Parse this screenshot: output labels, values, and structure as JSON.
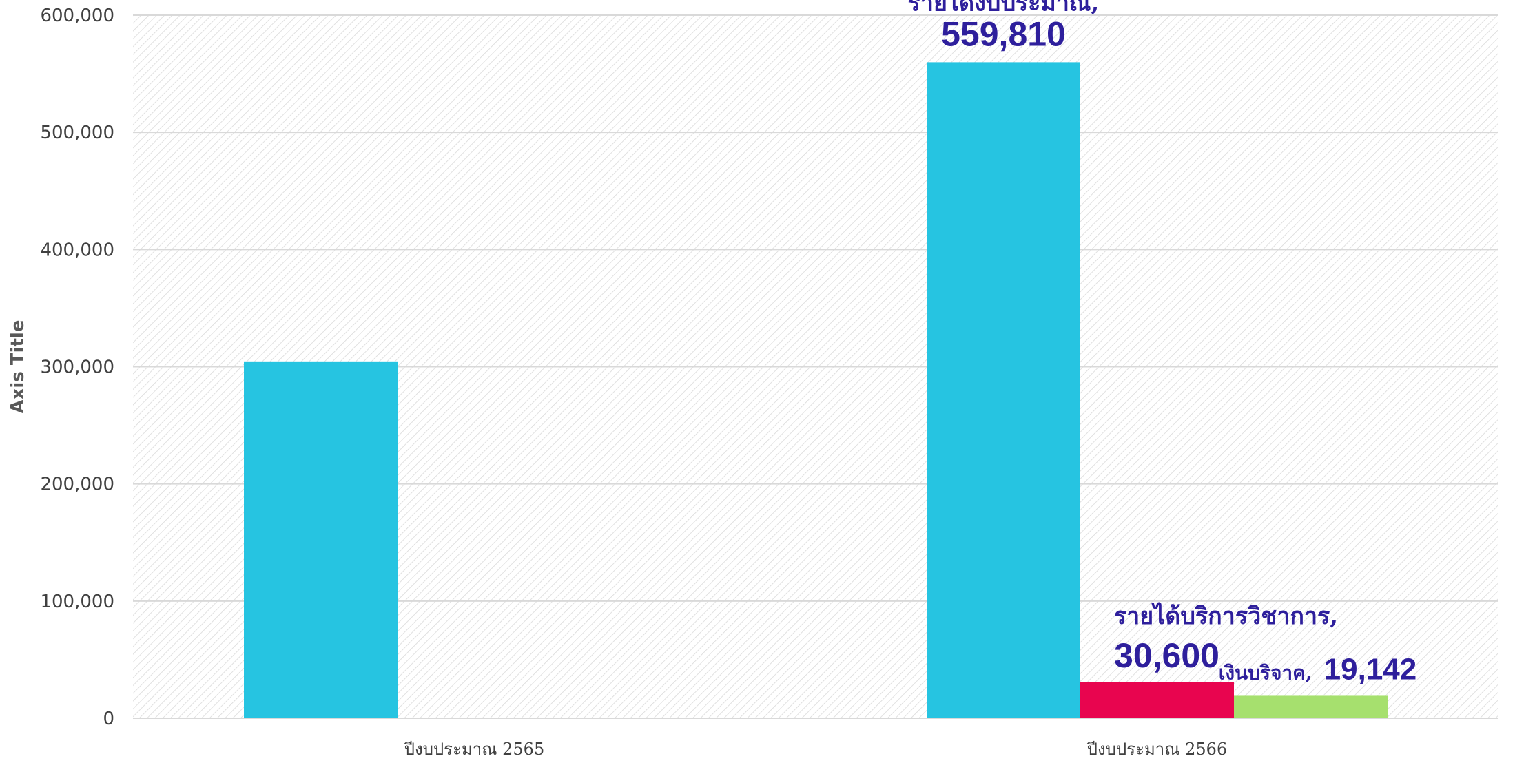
{
  "chart_data": {
    "type": "bar",
    "categories": [
      "ปีงบประมาณ 2565",
      "ปีงบประมาณ 2566"
    ],
    "series": [
      {
        "name": "รายได้งบประมาณ",
        "color": "#26c4e1",
        "values": [
          304500,
          559810
        ]
      },
      {
        "name": "รายได้บริการวิชาการ",
        "color": "#e8054f",
        "values": [
          null,
          30600
        ]
      },
      {
        "name": "เงินบริจาค",
        "color": "#a6e06e",
        "values": [
          null,
          19142
        ]
      }
    ],
    "ylabel": "Axis Title",
    "ylim": [
      0,
      600000
    ],
    "yticks": [
      "0",
      "100,000",
      "200,000",
      "300,000",
      "400,000",
      "500,000",
      "600,000"
    ],
    "data_labels": [
      {
        "series": "รายได้งบประมาณ",
        "category": "ปีงบประมาณ 2566",
        "name_text": "รายได้งบประมาณ,",
        "value_text": "559,810"
      },
      {
        "series": "รายได้บริการวิชาการ",
        "category": "ปีงบประมาณ 2566",
        "name_text": "รายได้บริการวิชาการ,",
        "value_text": "30,600"
      },
      {
        "series": "เงินบริจาค",
        "category": "ปีงบประมาณ 2566",
        "name_text": "เงินบริจาค,",
        "value_text": "19,142"
      }
    ],
    "grid": true,
    "legend": "none"
  }
}
